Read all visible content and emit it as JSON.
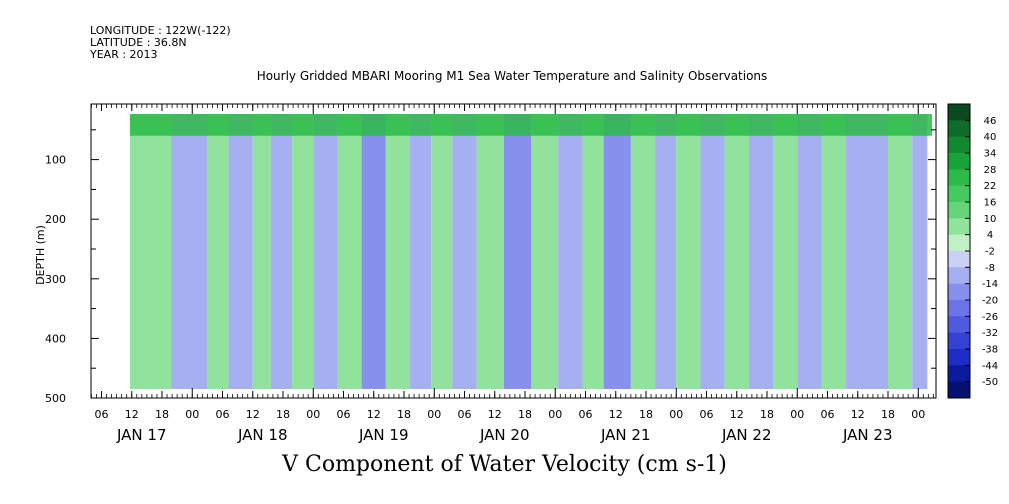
{
  "header": {
    "longitude": "LONGITUDE : 122W(-122)",
    "latitude": "LATITUDE : 36.8N",
    "year": "YEAR : 2013"
  },
  "chart_data": {
    "type": "heatmap",
    "title": "Hourly Gridded MBARI Mooring M1 Sea Water Temperature and Salinity Observations",
    "xlabel": "V Component of Water Velocity (cm s-1)",
    "ylabel": "DEPTH (m)",
    "y_ticks": [
      100,
      200,
      300,
      400,
      500
    ],
    "y_tick_labels": [
      "100",
      "200",
      "300",
      "400",
      "500"
    ],
    "ylim": [
      500,
      0
    ],
    "x_hour_ticks": [
      "06",
      "12",
      "18",
      "00",
      "06",
      "12",
      "18",
      "00",
      "06",
      "12",
      "18",
      "00",
      "06",
      "12",
      "18",
      "00",
      "06",
      "12",
      "18",
      "00",
      "06",
      "12",
      "18",
      "00",
      "06",
      "12",
      "18",
      "00"
    ],
    "x_date_labels": [
      "JAN 17",
      "JAN 18",
      "JAN 19",
      "JAN 20",
      "JAN 21",
      "JAN 22",
      "JAN 23"
    ],
    "colorbar": {
      "labels": [
        "46",
        "40",
        "34",
        "28",
        "22",
        "16",
        "10",
        "4",
        "-2",
        "-8",
        "-14",
        "-20",
        "-26",
        "-32",
        "-38",
        "-44",
        "-50"
      ],
      "colors": [
        "#0a4a1e",
        "#0f6b2a",
        "#12882f",
        "#18a33a",
        "#2cbb48",
        "#46c95e",
        "#66d57a",
        "#90e29c",
        "#c2f0c6",
        "#cbd0f5",
        "#a6aff0",
        "#8790ec",
        "#6a74e6",
        "#4f5ade",
        "#3441d3",
        "#1e2dc6",
        "#0c1a9c",
        "#06106e"
      ]
    },
    "bands": [
      {
        "start": 0.0,
        "end": 2.3,
        "v": 6
      },
      {
        "start": 2.3,
        "end": 3.5,
        "v": -10
      },
      {
        "start": 3.5,
        "end": 4.2,
        "v": 6
      },
      {
        "start": 4.2,
        "end": 5.0,
        "v": -12
      },
      {
        "start": 5.0,
        "end": 5.6,
        "v": 8
      },
      {
        "start": 5.6,
        "end": 6.3,
        "v": -14
      },
      {
        "start": 6.3,
        "end": 7.0,
        "v": 6
      },
      {
        "start": 7.0,
        "end": 7.8,
        "v": -12
      },
      {
        "start": 7.8,
        "end": 8.6,
        "v": 8
      },
      {
        "start": 8.6,
        "end": 9.4,
        "v": -16
      },
      {
        "start": 9.4,
        "end": 10.2,
        "v": 6
      },
      {
        "start": 10.2,
        "end": 10.9,
        "v": -12
      },
      {
        "start": 10.9,
        "end": 11.6,
        "v": 8
      },
      {
        "start": 11.6,
        "end": 12.4,
        "v": -14
      },
      {
        "start": 12.4,
        "end": 13.3,
        "v": 6
      },
      {
        "start": 13.3,
        "end": 14.2,
        "v": -16
      },
      {
        "start": 14.2,
        "end": 15.1,
        "v": 8
      },
      {
        "start": 15.1,
        "end": 15.9,
        "v": -12
      },
      {
        "start": 15.9,
        "end": 16.6,
        "v": 6
      },
      {
        "start": 16.6,
        "end": 17.5,
        "v": -16
      },
      {
        "start": 17.5,
        "end": 18.3,
        "v": 8
      },
      {
        "start": 18.3,
        "end": 19.0,
        "v": -12
      },
      {
        "start": 19.0,
        "end": 19.8,
        "v": 6
      },
      {
        "start": 19.8,
        "end": 20.6,
        "v": -14
      },
      {
        "start": 20.6,
        "end": 21.4,
        "v": 8
      },
      {
        "start": 21.4,
        "end": 22.2,
        "v": -12
      },
      {
        "start": 22.2,
        "end": 23.0,
        "v": 6
      },
      {
        "start": 23.0,
        "end": 23.8,
        "v": -14
      },
      {
        "start": 23.8,
        "end": 24.6,
        "v": 6
      },
      {
        "start": 24.6,
        "end": 26.0,
        "v": -12
      },
      {
        "start": 26.0,
        "end": 26.8,
        "v": 6
      },
      {
        "start": 26.8,
        "end": 27.3,
        "v": -10
      }
    ],
    "surface_layer": {
      "depth_max": 60,
      "v": 24
    }
  }
}
